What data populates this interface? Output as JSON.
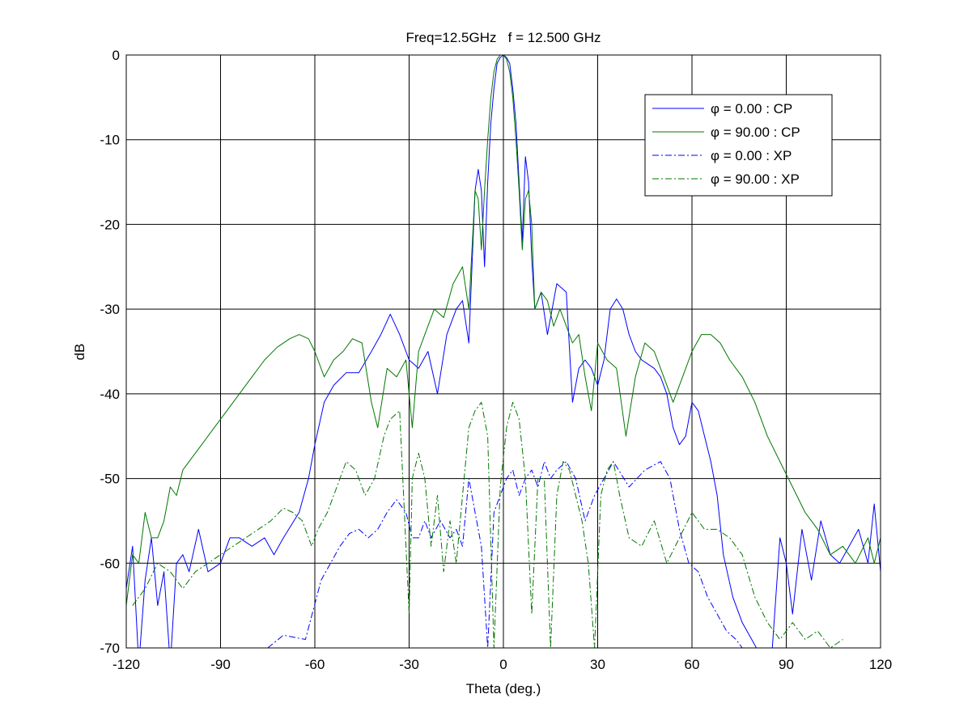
{
  "chart_data": {
    "type": "line",
    "title": "Freq=12.5GHz   f = 12.500 GHz",
    "xlabel": "Theta (deg.)",
    "ylabel": "dB",
    "xlim": [
      -120,
      120
    ],
    "ylim": [
      -70,
      0
    ],
    "xticks": [
      -120,
      -90,
      -60,
      -30,
      0,
      30,
      60,
      90,
      120
    ],
    "yticks": [
      0,
      -10,
      -20,
      -30,
      -40,
      -50,
      -60,
      -70
    ],
    "grid": true,
    "legend_position": "top-right",
    "series": [
      {
        "name": "φ = 0.00 : CP",
        "color": "#0000ff",
        "style": "solid",
        "x": [
          -120,
          -118,
          -116,
          -114,
          -112,
          -110,
          -108,
          -106,
          -104,
          -102,
          -100,
          -97,
          -94,
          -90,
          -87,
          -84,
          -80,
          -76,
          -73,
          -70,
          -65,
          -62,
          -60,
          -57,
          -54,
          -50,
          -46,
          -42,
          -39,
          -36,
          -33,
          -30,
          -27,
          -24,
          -21,
          -18,
          -15,
          -13,
          -11,
          -9,
          -8,
          -7,
          -6,
          -5,
          -4,
          -3,
          -2,
          -1,
          0,
          1,
          2,
          3,
          4,
          5,
          6,
          7,
          8,
          9,
          10,
          12,
          14,
          17,
          20,
          22,
          24,
          26,
          28,
          30,
          32,
          34,
          36,
          38,
          40,
          42,
          44,
          46,
          48,
          50,
          52,
          54,
          56,
          58,
          60,
          62,
          64,
          66,
          68,
          70,
          73,
          76,
          79,
          82,
          85,
          88,
          90,
          92,
          95,
          98,
          101,
          104,
          107,
          110,
          113,
          116,
          118,
          120
        ],
        "y": [
          -63,
          -58,
          -72,
          -62,
          -57,
          -65,
          -61,
          -72,
          -60,
          -59,
          -61,
          -56,
          -61,
          -60,
          -57,
          -57,
          -58,
          -57,
          -59,
          -57,
          -54,
          -50,
          -46,
          -41,
          -39,
          -37.5,
          -37.5,
          -35,
          -33,
          -30.6,
          -33,
          -36,
          -37,
          -35,
          -40,
          -33,
          -30,
          -29,
          -34,
          -16,
          -13.5,
          -16,
          -25,
          -15,
          -8,
          -4,
          -1,
          -0.3,
          0,
          -0.3,
          -1,
          -4,
          -8,
          -15,
          -22,
          -12,
          -15,
          -24,
          -30,
          -28,
          -33,
          -27,
          -28,
          -41,
          -37,
          -36,
          -37,
          -39,
          -36,
          -30,
          -28.8,
          -30,
          -33,
          -35,
          -36,
          -36.5,
          -37,
          -38,
          -40,
          -44,
          -46,
          -45,
          -41,
          -42,
          -45,
          -48,
          -52,
          -59,
          -64,
          -67,
          -69,
          -71,
          -73,
          -57,
          -60,
          -66,
          -56,
          -62,
          -55,
          -59,
          -60,
          -58,
          -56,
          -60,
          -53,
          -61
        ],
        "_note_x": "theta values"
      },
      {
        "name": "φ = 90.00 : CP",
        "color": "#007700",
        "style": "solid",
        "x": [
          -120,
          -118,
          -116,
          -114,
          -112,
          -110,
          -108,
          -106,
          -104,
          -102,
          -100,
          -96,
          -92,
          -88,
          -84,
          -80,
          -76,
          -72,
          -68,
          -65,
          -62,
          -60,
          -57,
          -54,
          -51,
          -48,
          -45,
          -42,
          -40,
          -37,
          -34,
          -31,
          -29,
          -27,
          -25,
          -22,
          -19,
          -16,
          -13,
          -11,
          -9,
          -8,
          -7,
          -6,
          -5,
          -4,
          -3,
          -2,
          -1,
          0,
          1,
          2,
          3,
          4,
          5,
          6,
          7,
          8,
          9,
          10,
          12,
          14,
          16,
          18,
          20,
          22,
          24,
          26,
          28,
          30,
          33,
          36,
          39,
          42,
          45,
          48,
          51,
          54,
          57,
          60,
          63,
          66,
          69,
          72,
          76,
          80,
          84,
          88,
          92,
          96,
          100,
          104,
          108,
          112,
          116,
          118,
          120
        ],
        "y": [
          -65,
          -59,
          -60,
          -54,
          -57,
          -57,
          -55,
          -51,
          -52,
          -49,
          -48,
          -46,
          -44,
          -42,
          -40,
          -38,
          -36,
          -34.5,
          -33.5,
          -33,
          -33.5,
          -35,
          -38,
          -36,
          -35,
          -33.5,
          -34,
          -41,
          -44,
          -37,
          -38,
          -36,
          -44,
          -35,
          -33,
          -30,
          -31,
          -27,
          -25,
          -30,
          -16,
          -17,
          -23,
          -16,
          -10,
          -5,
          -2,
          -0.5,
          0,
          0,
          -0.5,
          -2,
          -5,
          -10,
          -16,
          -23,
          -17,
          -16,
          -20,
          -30,
          -28,
          -29,
          -32,
          -30,
          -32,
          -34,
          -33,
          -38,
          -42,
          -34,
          -36,
          -37,
          -45,
          -38,
          -34,
          -35,
          -38,
          -41,
          -38,
          -35,
          -33,
          -33,
          -34,
          -36,
          -38,
          -41,
          -45,
          -48,
          -51,
          -54,
          -56,
          -59,
          -58,
          -60,
          -57,
          -60,
          -57
        ]
      },
      {
        "name": "φ = 0.00 : XP",
        "color": "#0000ff",
        "style": "dashdot",
        "x": [
          -75,
          -70,
          -63,
          -58,
          -55,
          -52,
          -49,
          -46,
          -43,
          -40,
          -37,
          -34,
          -31,
          -29,
          -27,
          -25,
          -23,
          -20,
          -17,
          -15,
          -13,
          -11,
          -9,
          -7,
          -5,
          -3,
          -1,
          1,
          3,
          5,
          7,
          9,
          11,
          13,
          15,
          17,
          20,
          23,
          26,
          29,
          32,
          35,
          40,
          45,
          50,
          53,
          56,
          59,
          62,
          65,
          68,
          71,
          74,
          76,
          78
        ],
        "y": [
          -70,
          -68.5,
          -69,
          -62,
          -60,
          -58,
          -56.5,
          -56,
          -57,
          -56,
          -54,
          -52.5,
          -54,
          -57,
          -57,
          -55,
          -57,
          -55,
          -57,
          -56,
          -58,
          -50,
          -54,
          -58,
          -70,
          -54,
          -52,
          -50,
          -49,
          -52,
          -50,
          -49,
          -51,
          -48,
          -50,
          -49,
          -48,
          -50,
          -55,
          -52,
          -50,
          -48,
          -51,
          -49,
          -48,
          -50,
          -56,
          -60,
          -61,
          -64,
          -66,
          -68,
          -69,
          -70,
          -70
        ]
      },
      {
        "name": "φ = 90.00 : XP",
        "color": "#007700",
        "style": "dashdot",
        "x": [
          -118,
          -114,
          -110,
          -106,
          -102,
          -98,
          -94,
          -90,
          -86,
          -82,
          -78,
          -74,
          -70,
          -67,
          -64,
          -61,
          -59,
          -56,
          -53,
          -50,
          -47,
          -44,
          -41,
          -38,
          -36,
          -33,
          -30,
          -29,
          -27,
          -25,
          -23,
          -21,
          -19,
          -17,
          -15,
          -13,
          -11,
          -9,
          -7,
          -5,
          -3,
          -1,
          1,
          3,
          5,
          7,
          9,
          11,
          13,
          15,
          17,
          19,
          21,
          23,
          25,
          27,
          29,
          31,
          33,
          35,
          37,
          40,
          44,
          48,
          52,
          56,
          60,
          64,
          68,
          72,
          76,
          80,
          84,
          88,
          92,
          96,
          100,
          104,
          108
        ],
        "y": [
          -65,
          -63,
          -60,
          -61,
          -63,
          -61,
          -60,
          -59,
          -58,
          -57,
          -56,
          -55,
          -53.5,
          -54,
          -55,
          -58,
          -56,
          -54,
          -51,
          -48,
          -49,
          -52,
          -50,
          -45,
          -43,
          -42,
          -66,
          -50,
          -47,
          -50,
          -58,
          -52,
          -61,
          -55,
          -60,
          -52,
          -44,
          -42,
          -41,
          -45,
          -70,
          -51,
          -44,
          -41,
          -43,
          -50,
          -66,
          -50,
          -50,
          -70,
          -52,
          -48,
          -49,
          -52,
          -55,
          -60,
          -70,
          -52,
          -49,
          -48,
          -52,
          -57,
          -58,
          -55,
          -60,
          -57,
          -54,
          -56,
          -56,
          -57,
          -59,
          -64,
          -67,
          -69,
          -67,
          -69,
          -68,
          -70,
          -69
        ]
      }
    ]
  }
}
